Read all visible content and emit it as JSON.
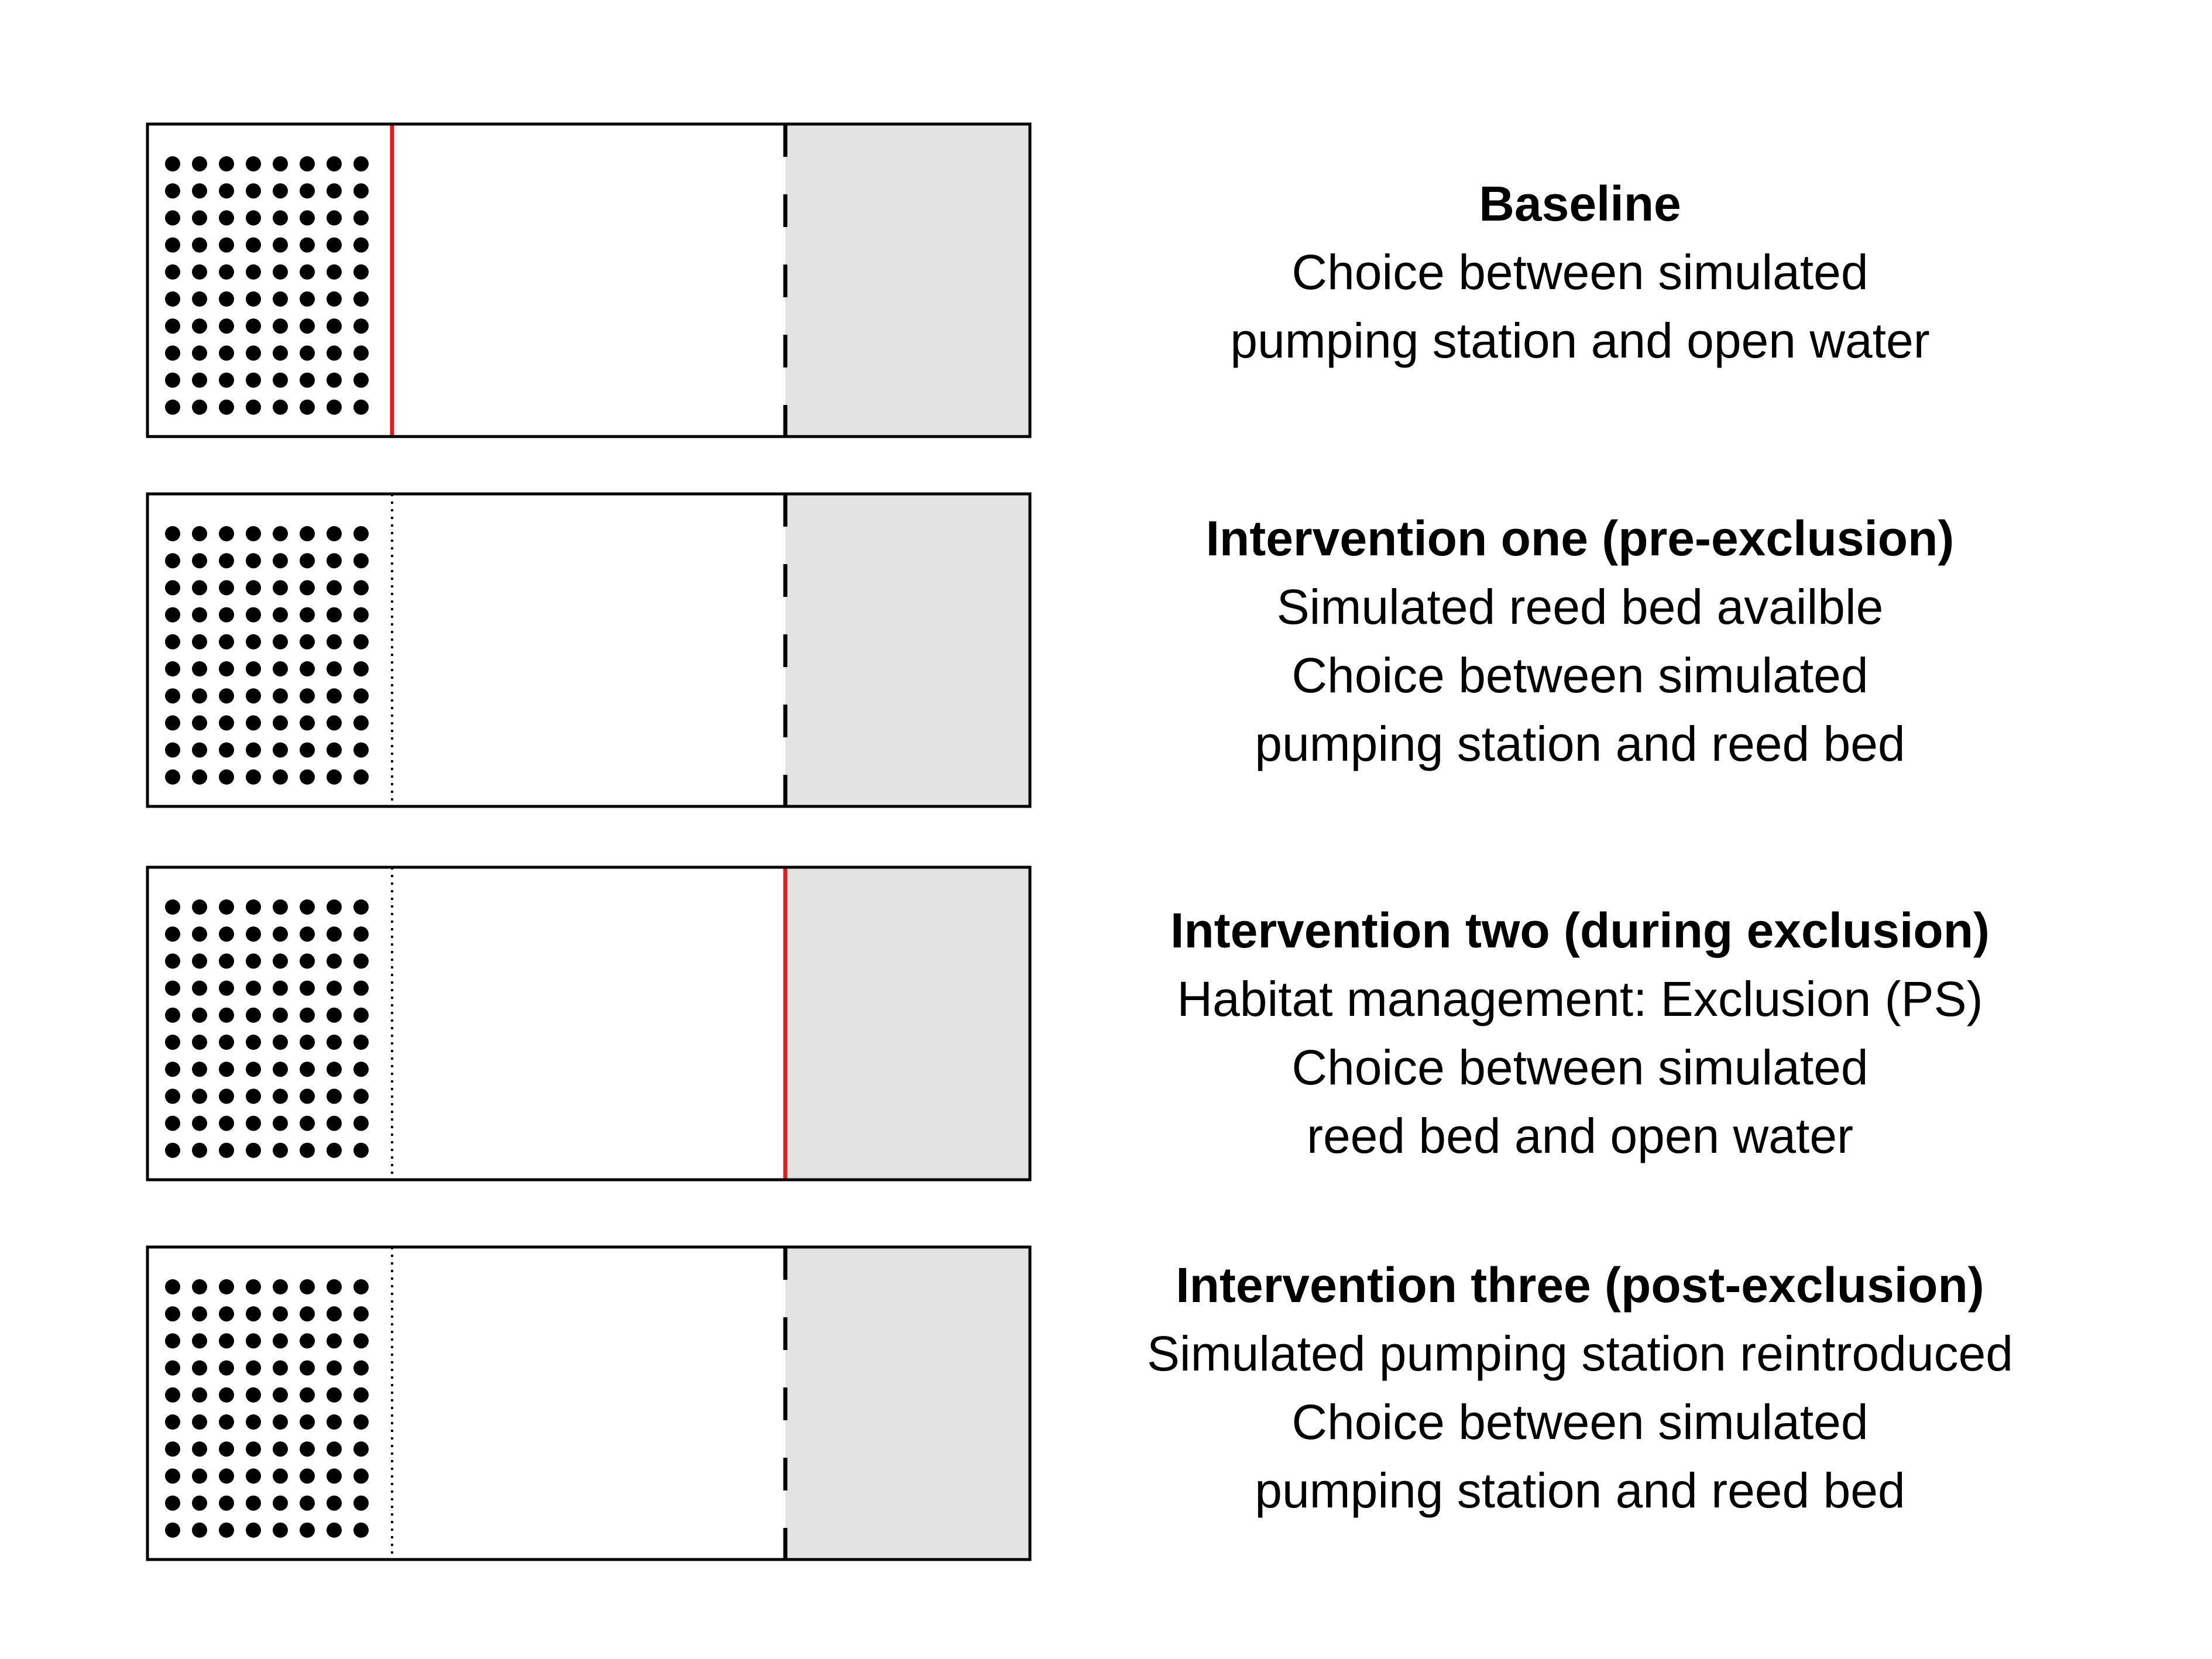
{
  "colors": {
    "outline": "#000000",
    "highlight_barrier": "#e41a1c",
    "open_water_fill": "#e3e3e3",
    "background": "#ffffff"
  },
  "rows": [
    {
      "title": "Baseline",
      "lines": [
        "Choice between simulated",
        "pumping station and open water"
      ],
      "left_divider": "solid-red",
      "right_divider": "dashed-black"
    },
    {
      "title": "Intervention one (pre-exclusion)",
      "lines": [
        "Simulated reed bed availble",
        "Choice between simulated",
        "pumping station and reed bed"
      ],
      "left_divider": "dotted-black",
      "right_divider": "dashed-black"
    },
    {
      "title": "Intervention two (during exclusion)",
      "lines": [
        "Habitat management: Exclusion (PS)",
        "Choice between simulated",
        "reed bed and open water"
      ],
      "left_divider": "dotted-black",
      "right_divider": "solid-red"
    },
    {
      "title": "Intervention three (post-exclusion)",
      "lines": [
        "Simulated pumping station reintroduced",
        "Choice between simulated",
        "pumping station and reed bed"
      ],
      "left_divider": "dotted-black",
      "right_divider": "dashed-black"
    }
  ]
}
